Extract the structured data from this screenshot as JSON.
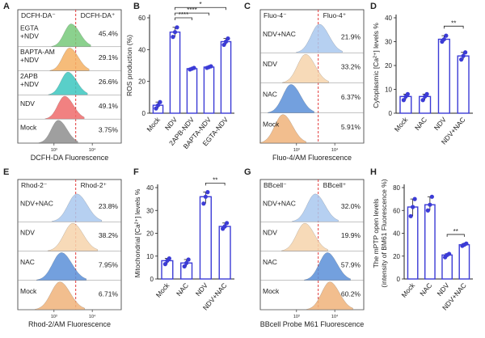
{
  "colors": {
    "bar": "#3b3bd6",
    "dash": "#e23a3a",
    "dot": "#3b3bd6",
    "blue": "#5b8fd8",
    "lightblue": "#a9c8ef",
    "orange": "#f0b37a",
    "lightorange": "#f6d3ac",
    "darkblue": "#2f5fa8",
    "green": "#77c97a",
    "orange2": "#f4b063",
    "teal": "#3cc7c0",
    "red": "#ee6b6b",
    "grey": "#8e8e8e"
  },
  "chart_data": [
    {
      "panel": "A",
      "type": "histogram",
      "title_left": "DCFH-DA⁻",
      "title_right": "DCFH-DA⁺",
      "xlabel": "DCFH-DA Fluorescence",
      "ticks": [
        "10³",
        "10⁴"
      ],
      "rows": [
        {
          "label": "EGTA\n+NDV",
          "value": "45.4%",
          "color": "green"
        },
        {
          "label": "BAPTA-AM\n+NDV",
          "value": "29.1%",
          "color": "orange2"
        },
        {
          "label": "2APB\n+NDV",
          "value": "26.6%",
          "color": "teal"
        },
        {
          "label": "NDV",
          "value": "49.1%",
          "color": "red"
        },
        {
          "label": "Mock",
          "value": "3.75%",
          "color": "grey"
        }
      ]
    },
    {
      "panel": "B",
      "type": "bar",
      "ylabel": "ROS production (%)",
      "ylim": [
        0,
        60
      ],
      "yticks": [
        0,
        20,
        40,
        60
      ],
      "categories": [
        "Mock",
        "NDV",
        "2APB-NDV",
        "BAPTA-NDV",
        "EGTA-NDV"
      ],
      "values": [
        5,
        51,
        28,
        29,
        45
      ],
      "points": [
        [
          3,
          5,
          7
        ],
        [
          48,
          51,
          54
        ],
        [
          27.5,
          28,
          28.5
        ],
        [
          28.5,
          29,
          29.5
        ],
        [
          43,
          45,
          47
        ]
      ],
      "significance": [
        "****",
        "****",
        "*"
      ]
    },
    {
      "panel": "C",
      "type": "histogram",
      "title_left": "Fluo-4⁻",
      "title_right": "Fluo-4⁺",
      "xlabel": "Fluo-4/AM Fluorescence",
      "ticks": [
        "10³",
        "10⁴"
      ],
      "rows": [
        {
          "label": "NDV+NAC",
          "value": "21.9%",
          "color": "lightblue"
        },
        {
          "label": "NDV",
          "value": "33.2%",
          "color": "lightorange"
        },
        {
          "label": "NAC",
          "value": "6.37%",
          "color": "blue"
        },
        {
          "label": "Mock",
          "value": "5.91%",
          "color": "orange"
        }
      ]
    },
    {
      "panel": "D",
      "type": "bar",
      "ylabel": "Cytoplasmic [Ca²⁺] levels %",
      "ylim": [
        0,
        40
      ],
      "yticks": [
        0,
        10,
        20,
        30,
        40
      ],
      "categories": [
        "Mock",
        "NAC",
        "NDV",
        "NDV+NAC"
      ],
      "values": [
        7,
        7,
        31,
        24
      ],
      "points": [
        [
          5.5,
          7,
          8
        ],
        [
          5.5,
          7,
          8
        ],
        [
          30,
          31,
          32.5
        ],
        [
          22.5,
          24,
          25.5
        ]
      ],
      "significance": [
        "**"
      ]
    },
    {
      "panel": "E",
      "type": "histogram",
      "title_left": "Rhod-2⁻",
      "title_right": "Rhod-2⁺",
      "xlabel": "Rhod-2/AM Fluorescence",
      "ticks": [
        "10³",
        "10⁴"
      ],
      "rows": [
        {
          "label": "NDV+NAC",
          "value": "23.8%",
          "color": "lightblue"
        },
        {
          "label": "NDV",
          "value": "38.2%",
          "color": "lightorange"
        },
        {
          "label": "NAC",
          "value": "7.95%",
          "color": "blue"
        },
        {
          "label": "Mock",
          "value": "6.71%",
          "color": "orange"
        }
      ]
    },
    {
      "panel": "F",
      "type": "bar",
      "ylabel": "Mitochondrial [Ca²⁺] levels %",
      "ylim": [
        0,
        40
      ],
      "yticks": [
        0,
        10,
        20,
        30,
        40
      ],
      "categories": [
        "Mock",
        "NAC",
        "NDV",
        "NDV+NAC"
      ],
      "values": [
        8,
        7,
        36,
        23
      ],
      "points": [
        [
          6.5,
          8,
          9
        ],
        [
          5.5,
          7,
          8.5
        ],
        [
          33,
          36,
          38
        ],
        [
          22,
          23,
          24.5
        ]
      ],
      "significance": [
        "**"
      ]
    },
    {
      "panel": "G",
      "type": "histogram",
      "title_left": "BBcell⁻",
      "title_right": "BBcell⁺",
      "xlabel": "BBcell Probe M61 Fluorescence",
      "ticks": [
        "10³",
        "10⁴"
      ],
      "rows": [
        {
          "label": "NDV+NAC",
          "value": "32.0%",
          "color": "lightblue"
        },
        {
          "label": "NDV",
          "value": "19.9%",
          "color": "lightorange"
        },
        {
          "label": "NAC",
          "value": "57.9%",
          "color": "blue"
        },
        {
          "label": "Mock",
          "value": "60.2%",
          "color": "orange"
        }
      ]
    },
    {
      "panel": "H",
      "type": "bar",
      "ylabel": "The mPTP open levels\n(intensity of BM61 Fluorescence %)",
      "ylim": [
        0,
        80
      ],
      "yticks": [
        0,
        20,
        40,
        60,
        80
      ],
      "categories": [
        "Mock",
        "NAC",
        "NDV",
        "NDV+NAC"
      ],
      "values": [
        63,
        65,
        21,
        30
      ],
      "points": [
        [
          55,
          63,
          70
        ],
        [
          60,
          65,
          72
        ],
        [
          19,
          21,
          22
        ],
        [
          29,
          30,
          31
        ]
      ],
      "significance": [
        "**"
      ]
    }
  ]
}
